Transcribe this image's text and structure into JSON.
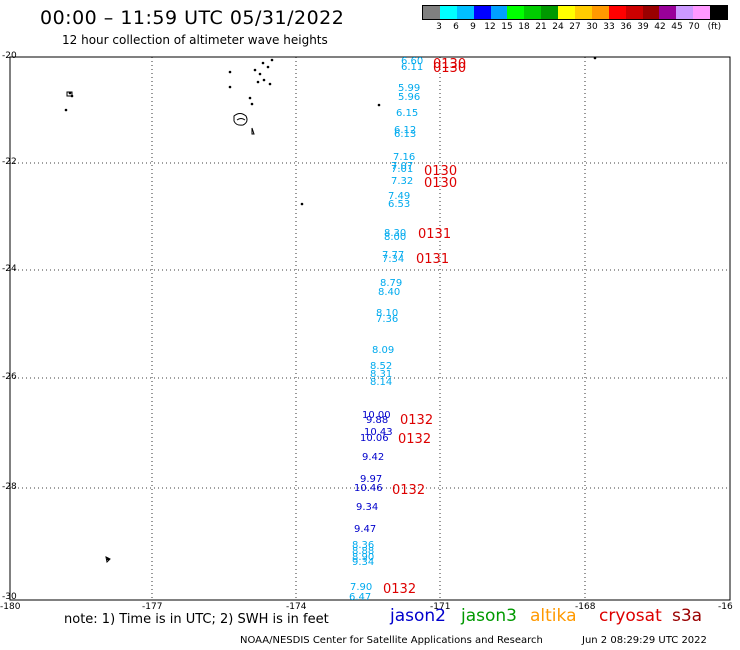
{
  "header": {
    "title": "00:00 – 11:59 UTC 05/31/2022",
    "subtitle": "12 hour collection of altimeter wave heights"
  },
  "colorbar": {
    "colors": [
      "#808080",
      "#00ffff",
      "#00bfff",
      "#0000ff",
      "#00a0ff",
      "#00ff00",
      "#00cc00",
      "#009900",
      "#ffff00",
      "#ffcc00",
      "#ff9900",
      "#ff0000",
      "#cc0000",
      "#990000",
      "#990099",
      "#cc99ff",
      "#ff99ff",
      "#000000"
    ],
    "labels": [
      "3",
      "6",
      "9",
      "12",
      "15",
      "18",
      "21",
      "24",
      "27",
      "30",
      "33",
      "36",
      "39",
      "42",
      "45",
      "70"
    ],
    "unit": "(ft)"
  },
  "axes": {
    "lon_labels": [
      "-180",
      "-177",
      "-174",
      "-171",
      "-168",
      "-16"
    ],
    "lat_labels": [
      "-20",
      "-22",
      "-24",
      "-26",
      "-28",
      "-30"
    ]
  },
  "wave_labels": [
    {
      "v": "6.60",
      "c": "#00aaee"
    },
    {
      "v": "6.11",
      "c": "#00aaee"
    },
    {
      "v": "5.99",
      "c": "#00aaee"
    },
    {
      "v": "5.96",
      "c": "#00aaee"
    },
    {
      "v": "6.15",
      "c": "#00aaee"
    },
    {
      "v": "6.12",
      "c": "#00aaee"
    },
    {
      "v": "6.13",
      "c": "#00aaee"
    },
    {
      "v": "7.16",
      "c": "#00aaee"
    },
    {
      "v": "7.07",
      "c": "#00aaee"
    },
    {
      "v": "7.01",
      "c": "#00aaee"
    },
    {
      "v": "7.32",
      "c": "#00aaee"
    },
    {
      "v": "7.49",
      "c": "#00aaee"
    },
    {
      "v": "6.53",
      "c": "#00aaee"
    },
    {
      "v": "8.30",
      "c": "#00aaee"
    },
    {
      "v": "8.00",
      "c": "#00aaee"
    },
    {
      "v": "7.77",
      "c": "#00aaee"
    },
    {
      "v": "7.34",
      "c": "#00aaee"
    },
    {
      "v": "8.79",
      "c": "#00aaee"
    },
    {
      "v": "8.40",
      "c": "#00aaee"
    },
    {
      "v": "8.10",
      "c": "#00aaee"
    },
    {
      "v": "7.36",
      "c": "#00aaee"
    },
    {
      "v": "8.09",
      "c": "#00aaee"
    },
    {
      "v": "8.52",
      "c": "#00aaee"
    },
    {
      "v": "8.31",
      "c": "#00aaee"
    },
    {
      "v": "8.14",
      "c": "#00aaee"
    },
    {
      "v": "10.00",
      "c": "#0000cc"
    },
    {
      "v": "9.88",
      "c": "#0000cc"
    },
    {
      "v": "10.43",
      "c": "#0000cc"
    },
    {
      "v": "10.06",
      "c": "#0000cc"
    },
    {
      "v": "9.42",
      "c": "#0000cc"
    },
    {
      "v": "9.97",
      "c": "#0000cc"
    },
    {
      "v": "10.46",
      "c": "#0000cc"
    },
    {
      "v": "9.34",
      "c": "#0000cc"
    },
    {
      "v": "9.47",
      "c": "#0000cc"
    },
    {
      "v": "8.36",
      "c": "#00aaee"
    },
    {
      "v": "8.88",
      "c": "#00aaee"
    },
    {
      "v": "8.90",
      "c": "#00aaee"
    },
    {
      "v": "9.34",
      "c": "#00aaee"
    },
    {
      "v": "7.90",
      "c": "#00aaee"
    },
    {
      "v": "6.47",
      "c": "#00aaee"
    }
  ],
  "time_labels": [
    "0130",
    "0130",
    "0130",
    "0130",
    "0131",
    "0131",
    "0132",
    "0132",
    "0132",
    "0132"
  ],
  "legend": {
    "note": "note: 1) Time is in UTC; 2) SWH is in feet",
    "satellites": [
      {
        "name": "jason2",
        "color": "#0000cc"
      },
      {
        "name": "jason3",
        "color": "#009900"
      },
      {
        "name": "altika",
        "color": "#ff9900"
      },
      {
        "name": "cryosat",
        "color": "#dd0000"
      },
      {
        "name": "s3a",
        "color": "#990000"
      }
    ],
    "credit": "NOAA/NESDIS Center for Satellite Applications and Research",
    "timestamp": "Jun  2 08:29:29 UTC 2022"
  }
}
